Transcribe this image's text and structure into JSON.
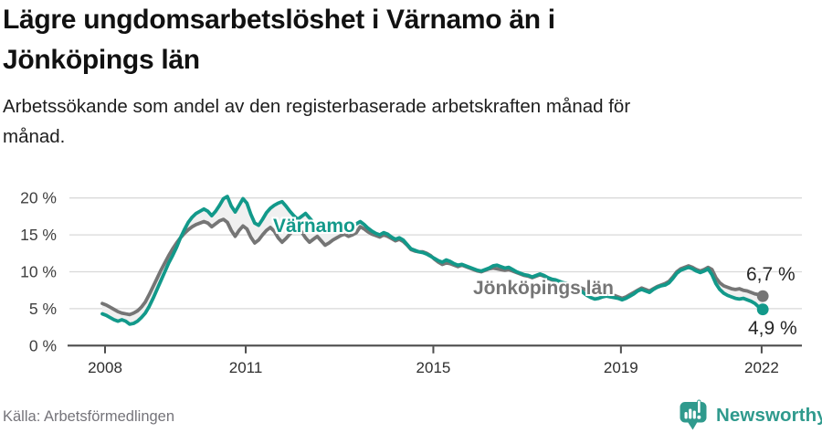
{
  "header": {
    "title_lines": [
      "Lägre ungdomsarbetslöshet i Värnamo än i",
      "Jönköpings län"
    ],
    "subtitle_lines": [
      "Arbetssökande som andel av den registerbaserade arbetskraften månad för",
      "månad."
    ]
  },
  "footer": {
    "source": "Källa: Arbetsförmedlingen",
    "brand": "Newsworthy"
  },
  "colors": {
    "varnamo": "#12998a",
    "jonkopings_lan": "#757575",
    "grid": "#d9d9d9",
    "axis": "#4c4c4c",
    "band_fill": "#f0f0f0",
    "brand_teal": "#2f9a8d"
  },
  "chart_data": {
    "type": "line",
    "title": "Lägre ungdomsarbetslöshet i Värnamo än i Jönköpings län",
    "subtitle": "Arbetssökande som andel av den registerbaserade arbetskraften månad för månad.",
    "frequency": "monthly",
    "x_start": "2008-01",
    "x_end": "2022-02",
    "xticks": [
      2008,
      2011,
      2015,
      2019,
      2022
    ],
    "yticks": [
      0,
      5,
      10,
      15,
      20
    ],
    "ytick_labels": [
      "0 %",
      "5 %",
      "10 %",
      "15 %",
      "20 %"
    ],
    "ylim": [
      0,
      21
    ],
    "grid": true,
    "legend_position": "inline",
    "series": [
      {
        "name": "Jönköpings län",
        "color": "#757575",
        "end_label": "6,7 %",
        "end_value": 6.7,
        "values": [
          5.7,
          5.5,
          5.2,
          4.9,
          4.6,
          4.4,
          4.3,
          4.2,
          4.4,
          4.7,
          5.2,
          5.9,
          6.9,
          8.0,
          9.1,
          10.2,
          11.2,
          12.2,
          13.1,
          13.9,
          14.6,
          15.2,
          15.7,
          16.1,
          16.4,
          16.6,
          16.8,
          16.6,
          16.1,
          16.5,
          16.9,
          17.1,
          16.7,
          15.6,
          14.8,
          15.6,
          16.2,
          15.8,
          14.7,
          13.9,
          14.3,
          15.0,
          15.6,
          16.0,
          15.5,
          14.6,
          14.0,
          14.5,
          15.1,
          15.7,
          16.1,
          15.4,
          14.6,
          14.0,
          14.4,
          14.8,
          14.2,
          13.6,
          13.9,
          14.3,
          14.6,
          14.9,
          15.1,
          14.8,
          15.0,
          15.3,
          16.1,
          15.8,
          15.4,
          15.1,
          14.9,
          14.7,
          15.0,
          14.8,
          14.5,
          14.2,
          14.4,
          14.1,
          13.6,
          13.0,
          12.8,
          12.7,
          12.7,
          12.5,
          12.2,
          11.7,
          11.3,
          11.0,
          11.2,
          11.1,
          10.9,
          10.7,
          10.9,
          10.7,
          10.5,
          10.3,
          10.1,
          10.0,
          10.2,
          10.4,
          10.5,
          10.4,
          10.3,
          10.2,
          10.3,
          10.1,
          9.9,
          9.7,
          9.5,
          9.4,
          9.2,
          9.4,
          9.6,
          9.4,
          9.1,
          8.9,
          8.8,
          8.6,
          8.5,
          8.4,
          8.3,
          8.1,
          7.9,
          7.7,
          7.5,
          7.3,
          7.1,
          7.0,
          7.1,
          7.2,
          7.0,
          6.8,
          6.6,
          6.4,
          6.6,
          6.9,
          7.2,
          7.5,
          7.8,
          7.6,
          7.4,
          7.7,
          8.0,
          8.2,
          8.4,
          8.7,
          9.3,
          10.0,
          10.4,
          10.6,
          10.8,
          10.6,
          10.3,
          10.1,
          10.3,
          10.6,
          10.3,
          9.2,
          8.5,
          8.1,
          7.9,
          7.7,
          7.6,
          7.7,
          7.5,
          7.4,
          7.2,
          7.0,
          6.9,
          6.7
        ]
      },
      {
        "name": "Värnamo",
        "color": "#12998a",
        "end_label": "4,9 %",
        "end_value": 4.9,
        "values": [
          4.3,
          4.1,
          3.8,
          3.5,
          3.3,
          3.5,
          3.3,
          2.9,
          3.0,
          3.3,
          3.8,
          4.4,
          5.3,
          6.4,
          7.6,
          8.8,
          10.0,
          11.2,
          12.2,
          13.3,
          14.6,
          15.7,
          16.7,
          17.4,
          17.9,
          18.2,
          18.5,
          18.2,
          17.6,
          18.2,
          19.0,
          19.9,
          20.2,
          18.9,
          18.1,
          19.0,
          19.9,
          19.3,
          17.8,
          16.6,
          16.3,
          17.1,
          18.0,
          18.6,
          19.0,
          19.3,
          19.5,
          18.9,
          18.2,
          17.6,
          17.1,
          17.5,
          17.9,
          17.3,
          16.7,
          16.2,
          16.5,
          16.1,
          15.8,
          16.0,
          16.2,
          16.5,
          16.3,
          16.0,
          16.2,
          16.5,
          16.8,
          16.4,
          15.9,
          15.5,
          15.2,
          15.0,
          15.3,
          15.1,
          14.7,
          14.4,
          14.6,
          14.3,
          13.7,
          13.1,
          12.9,
          12.7,
          12.6,
          12.4,
          12.1,
          11.8,
          11.5,
          11.3,
          11.6,
          11.4,
          11.1,
          10.9,
          11.0,
          10.8,
          10.6,
          10.4,
          10.2,
          10.1,
          10.3,
          10.5,
          10.8,
          10.9,
          10.7,
          10.5,
          10.6,
          10.3,
          10.0,
          9.8,
          9.6,
          9.5,
          9.3,
          9.5,
          9.7,
          9.5,
          9.2,
          9.0,
          8.9,
          8.7,
          8.5,
          8.4,
          8.2,
          7.9,
          7.6,
          7.2,
          6.8,
          6.5,
          6.3,
          6.4,
          6.6,
          6.7,
          6.6,
          6.5,
          6.4,
          6.2,
          6.4,
          6.7,
          7.0,
          7.4,
          7.6,
          7.4,
          7.2,
          7.6,
          7.9,
          8.1,
          8.2,
          8.5,
          9.1,
          9.8,
          10.2,
          10.4,
          10.6,
          10.4,
          10.1,
          9.9,
          10.1,
          10.4,
          9.6,
          8.4,
          7.6,
          7.1,
          6.8,
          6.6,
          6.4,
          6.3,
          6.4,
          6.2,
          6.0,
          5.7,
          5.2,
          4.9
        ]
      }
    ]
  }
}
